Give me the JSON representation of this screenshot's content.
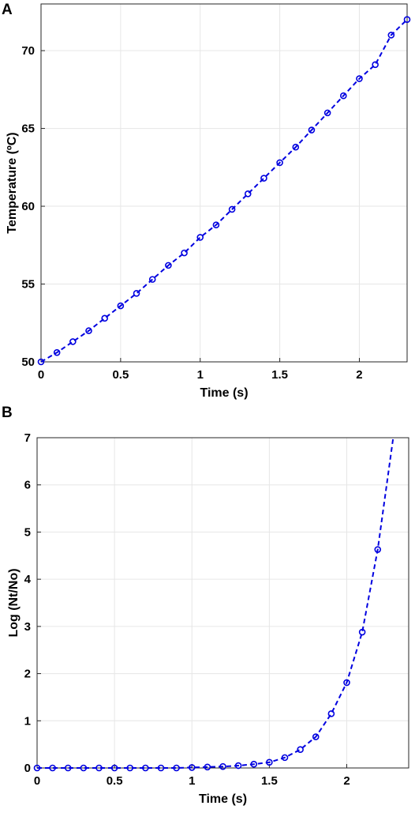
{
  "panels": {
    "a": "A",
    "b": "B"
  },
  "colors": {
    "series": "#0000e0",
    "grid": "#e6e6e6",
    "axis": "#000000"
  },
  "chart_data": [
    {
      "panel": "A",
      "type": "line",
      "title": "",
      "xlabel": "Time (s)",
      "ylabel": "Temperature (ºC)",
      "xlim": [
        0,
        2.3
      ],
      "ylim": [
        50,
        73
      ],
      "xticks": [
        0,
        0.5,
        1,
        1.5,
        2
      ],
      "xtick_labels": [
        "0",
        "0.5",
        "1",
        "1.5",
        "2"
      ],
      "yticks": [
        50,
        55,
        60,
        65,
        70
      ],
      "ytick_labels": [
        "50",
        "55",
        "60",
        "65",
        "70"
      ],
      "grid": true,
      "series": [
        {
          "style": "dashed line with circle markers",
          "x": [
            0,
            0.1,
            0.2,
            0.3,
            0.4,
            0.5,
            0.6,
            0.7,
            0.8,
            0.9,
            1.0,
            1.1,
            1.2,
            1.3,
            1.4,
            1.5,
            1.6,
            1.7,
            1.8,
            1.9,
            2.0,
            2.1,
            2.2,
            2.3
          ],
          "y": [
            50.0,
            50.6,
            51.3,
            52.0,
            52.8,
            53.6,
            54.4,
            55.3,
            56.2,
            57.0,
            58.0,
            58.8,
            59.8,
            60.8,
            61.8,
            62.8,
            63.8,
            64.9,
            66.0,
            67.1,
            68.2,
            69.1,
            71.0,
            72.0
          ]
        }
      ]
    },
    {
      "panel": "B",
      "type": "line",
      "title": "",
      "xlabel": "Time (s)",
      "ylabel": "Log (Nt/No)",
      "xlim": [
        0,
        2.4
      ],
      "ylim": [
        0,
        7
      ],
      "xticks": [
        0,
        0.5,
        1,
        1.5,
        2
      ],
      "xtick_labels": [
        "0",
        "0.5",
        "1",
        "1.5",
        "2"
      ],
      "yticks": [
        0,
        1,
        2,
        3,
        4,
        5,
        6,
        7
      ],
      "ytick_labels": [
        "0",
        "1",
        "2",
        "3",
        "4",
        "5",
        "6",
        "7"
      ],
      "grid": true,
      "series": [
        {
          "style": "dashed line with circle markers",
          "x": [
            0,
            0.1,
            0.2,
            0.3,
            0.4,
            0.5,
            0.6,
            0.7,
            0.8,
            0.9,
            1.0,
            1.1,
            1.2,
            1.3,
            1.4,
            1.5,
            1.6,
            1.7,
            1.8,
            1.9,
            2.0,
            2.1,
            2.2
          ],
          "y": [
            0.0,
            0.0,
            0.0,
            0.0,
            0.0,
            0.0,
            0.0,
            0.0,
            0.0,
            0.0,
            0.01,
            0.02,
            0.03,
            0.05,
            0.08,
            0.12,
            0.22,
            0.39,
            0.66,
            1.15,
            1.81,
            2.88,
            4.63
          ],
          "line_extension": {
            "x": [
              2.2,
              2.3
            ],
            "y": [
              4.63,
              7.0
            ]
          }
        }
      ]
    }
  ]
}
